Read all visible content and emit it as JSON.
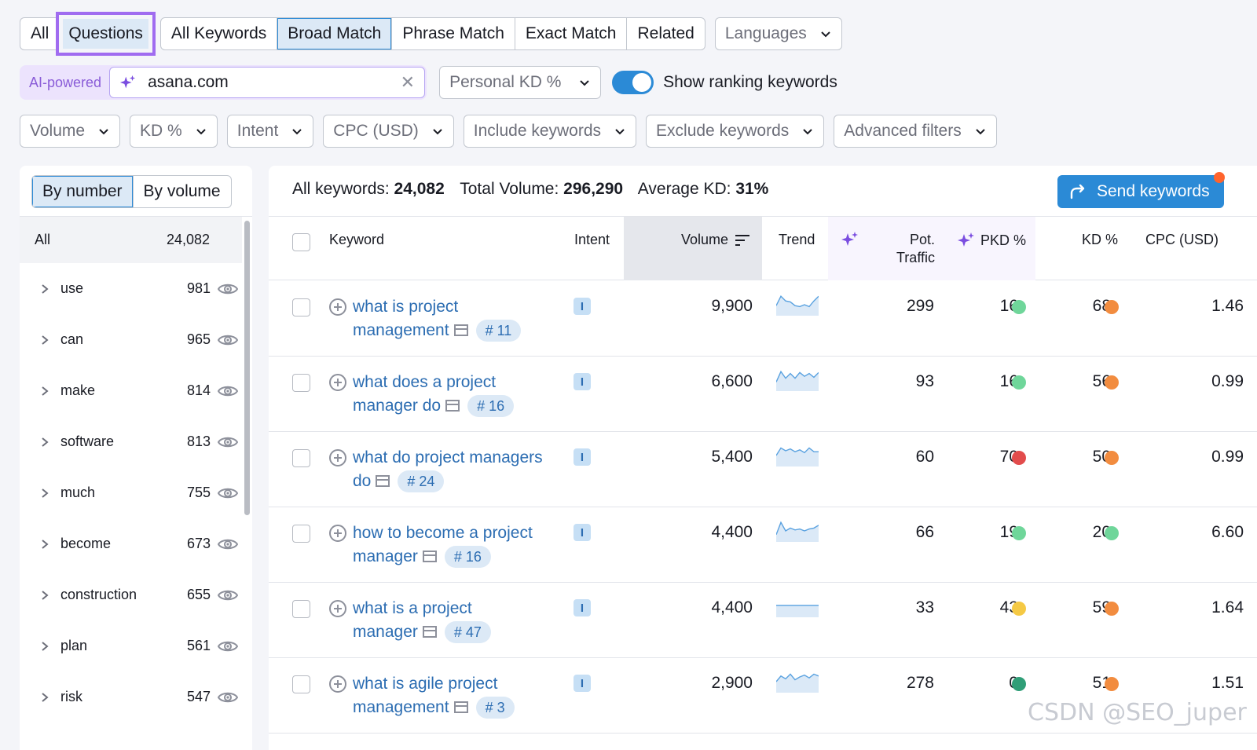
{
  "tabs": {
    "all": "All",
    "questions": "Questions",
    "match": [
      "All Keywords",
      "Broad Match",
      "Phrase Match",
      "Exact Match",
      "Related"
    ],
    "languages": "Languages"
  },
  "search": {
    "ai_label": "AI-powered",
    "domain": "asana.com",
    "clear_icon": "✕",
    "personal_kd": "Personal KD %",
    "toggle_label": "Show ranking keywords",
    "toggle_on": true
  },
  "filters": [
    "Volume",
    "KD %",
    "Intent",
    "CPC (USD)",
    "Include keywords",
    "Exclude keywords",
    "Advanced filters"
  ],
  "left_panel": {
    "by_number": "By number",
    "by_volume": "By volume",
    "all_label": "All",
    "all_count": "24,082",
    "groups": [
      {
        "label": "use",
        "count": "981"
      },
      {
        "label": "can",
        "count": "965"
      },
      {
        "label": "make",
        "count": "814"
      },
      {
        "label": "software",
        "count": "813"
      },
      {
        "label": "much",
        "count": "755"
      },
      {
        "label": "become",
        "count": "673"
      },
      {
        "label": "construction",
        "count": "655"
      },
      {
        "label": "plan",
        "count": "561"
      },
      {
        "label": "risk",
        "count": "547"
      }
    ]
  },
  "summary": {
    "all_keywords_label": "All keywords:",
    "all_keywords": "24,082",
    "total_volume_label": "Total Volume:",
    "total_volume": "296,290",
    "avg_kd_label": "Average KD:",
    "avg_kd": "31%",
    "send_button": "Send keywords"
  },
  "columns": {
    "keyword": "Keyword",
    "intent": "Intent",
    "volume": "Volume",
    "trend": "Trend",
    "pot_traffic_1": "Pot.",
    "pot_traffic_2": "Traffic",
    "pkd": "PKD %",
    "kd": "KD %",
    "cpc": "CPC (USD)"
  },
  "colors": {
    "accent": "#2b8ad6",
    "green": "#6fd69a",
    "dark_green": "#2f9e77",
    "yellow": "#f5c944",
    "orange": "#f28c3f",
    "red": "#e24c4c"
  },
  "rows": [
    {
      "kw1": "what is project",
      "kw2": "management",
      "pos": "# 11",
      "intent": "I",
      "volume": "9,900",
      "pot": "299",
      "pkd": "16",
      "pkd_color": "#6fd69a",
      "kd": "68",
      "kd_color": "#f28c3f",
      "cpc": "1.46",
      "trend": [
        0.45,
        0.95,
        0.7,
        0.65,
        0.45,
        0.4,
        0.5,
        0.4,
        0.7,
        0.95
      ]
    },
    {
      "kw1": "what does a project",
      "kw2": "manager do",
      "pos": "# 16",
      "intent": "I",
      "volume": "6,600",
      "pot": "93",
      "pkd": "16",
      "pkd_color": "#6fd69a",
      "kd": "56",
      "kd_color": "#f28c3f",
      "cpc": "0.99",
      "trend": [
        0.4,
        0.95,
        0.6,
        0.85,
        0.6,
        0.9,
        0.7,
        0.85,
        0.65,
        0.9
      ]
    },
    {
      "kw1": "what do project managers",
      "kw2": "do",
      "pos": "# 24",
      "intent": "I",
      "volume": "5,400",
      "pot": "60",
      "pkd": "70",
      "pkd_color": "#e24c4c",
      "kd": "50",
      "kd_color": "#f28c3f",
      "cpc": "0.99",
      "trend": [
        0.5,
        0.9,
        0.75,
        0.85,
        0.7,
        0.8,
        0.65,
        0.9,
        0.7,
        0.7
      ]
    },
    {
      "kw1": "how to become a project",
      "kw2": "manager",
      "pos": "# 16",
      "intent": "I",
      "volume": "4,400",
      "pot": "66",
      "pkd": "19",
      "pkd_color": "#6fd69a",
      "kd": "20",
      "kd_color": "#6fd69a",
      "cpc": "6.60",
      "trend": [
        0.3,
        0.95,
        0.5,
        0.65,
        0.55,
        0.6,
        0.5,
        0.6,
        0.65,
        0.8
      ]
    },
    {
      "kw1": "what is a project",
      "kw2": "manager",
      "pos": "# 47",
      "intent": "I",
      "volume": "4,400",
      "pot": "33",
      "pkd": "43",
      "pkd_color": "#f5c944",
      "kd": "59",
      "kd_color": "#f28c3f",
      "cpc": "1.64",
      "trend": [
        0.55,
        0.55,
        0.55,
        0.55,
        0.55,
        0.55,
        0.55,
        0.55,
        0.55,
        0.55
      ]
    },
    {
      "kw1": "what is agile project",
      "kw2": "management",
      "pos": "# 3",
      "intent": "I",
      "volume": "2,900",
      "pot": "278",
      "pkd": "0",
      "pkd_color": "#2f9e77",
      "kd": "51",
      "kd_color": "#f28c3f",
      "cpc": "1.51",
      "trend": [
        0.5,
        0.8,
        0.65,
        0.9,
        0.6,
        0.75,
        0.85,
        0.7,
        0.9,
        0.8
      ]
    }
  ],
  "watermark": "CSDN @SEO_juper"
}
